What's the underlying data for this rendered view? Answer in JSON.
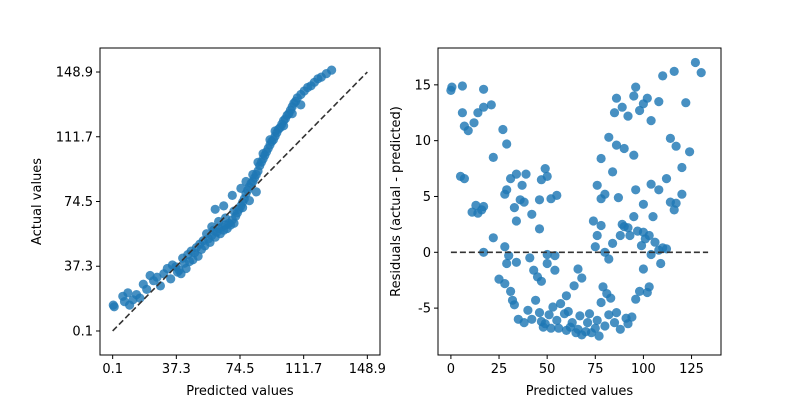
{
  "chart_data": [
    {
      "type": "scatter",
      "xlabel": "Predicted values",
      "ylabel": "Actual values",
      "xlim": [
        -7.3,
        156.3
      ],
      "ylim": [
        -13.7,
        162.7
      ],
      "xticks": [
        0.1,
        37.3,
        74.5,
        111.7,
        148.9
      ],
      "yticks": [
        0.1,
        37.3,
        74.5,
        111.7,
        148.9
      ],
      "reference_line": {
        "style": "dashed",
        "color": "#333333",
        "from": [
          0.1,
          0.1
        ],
        "to": [
          148.9,
          148.9
        ]
      },
      "marker_color": "#1f77b4",
      "points": [
        [
          0.5,
          15
        ],
        [
          1,
          14
        ],
        [
          6,
          20
        ],
        [
          7,
          17
        ],
        [
          9,
          22
        ],
        [
          10,
          15
        ],
        [
          12,
          18
        ],
        [
          14,
          21
        ],
        [
          16,
          19
        ],
        [
          18,
          27
        ],
        [
          20,
          24
        ],
        [
          22,
          32
        ],
        [
          24,
          29
        ],
        [
          26,
          31
        ],
        [
          28,
          26
        ],
        [
          30,
          33
        ],
        [
          32,
          36
        ],
        [
          34,
          30
        ],
        [
          35,
          38
        ],
        [
          37,
          37
        ],
        [
          38,
          34
        ],
        [
          39,
          35
        ],
        [
          40,
          33
        ],
        [
          41,
          42
        ],
        [
          42,
          39
        ],
        [
          43,
          36
        ],
        [
          44,
          44
        ],
        [
          45,
          40
        ],
        [
          46,
          46
        ],
        [
          47,
          41
        ],
        [
          48,
          45
        ],
        [
          49,
          48
        ],
        [
          50,
          43
        ],
        [
          51,
          50
        ],
        [
          52,
          47
        ],
        [
          53,
          52
        ],
        [
          54,
          49
        ],
        [
          55,
          56
        ],
        [
          56,
          53
        ],
        [
          57,
          51
        ],
        [
          58,
          55
        ],
        [
          59,
          58
        ],
        [
          60,
          54
        ],
        [
          61,
          57
        ],
        [
          62,
          59
        ],
        [
          63,
          56
        ],
        [
          64,
          60
        ],
        [
          65,
          58
        ],
        [
          66,
          61
        ],
        [
          67,
          59
        ],
        [
          68,
          62
        ],
        [
          69,
          61
        ],
        [
          70,
          64
        ],
        [
          71,
          62
        ],
        [
          72,
          66
        ],
        [
          73,
          68
        ],
        [
          74,
          70
        ],
        [
          75,
          72
        ],
        [
          76,
          74
        ],
        [
          77,
          76
        ],
        [
          78,
          79
        ],
        [
          79,
          81
        ],
        [
          80,
          83
        ],
        [
          81,
          85
        ],
        [
          82,
          86
        ],
        [
          83,
          88
        ],
        [
          84,
          90
        ],
        [
          85,
          92
        ],
        [
          86,
          95
        ],
        [
          87,
          97
        ],
        [
          88,
          99
        ],
        [
          89,
          101
        ],
        [
          90,
          103
        ],
        [
          91,
          105
        ],
        [
          92,
          107
        ],
        [
          93,
          109
        ],
        [
          94,
          110
        ],
        [
          95,
          112
        ],
        [
          96,
          114
        ],
        [
          97,
          116
        ],
        [
          98,
          117
        ],
        [
          99,
          119
        ],
        [
          100,
          121
        ],
        [
          101,
          122
        ],
        [
          102,
          124
        ],
        [
          103,
          125
        ],
        [
          104,
          127
        ],
        [
          105,
          129
        ],
        [
          106,
          131
        ],
        [
          107,
          132
        ],
        [
          108,
          134
        ],
        [
          110,
          136
        ],
        [
          112,
          138
        ],
        [
          114,
          140
        ],
        [
          116,
          141
        ],
        [
          118,
          143
        ],
        [
          120,
          145
        ],
        [
          122,
          146
        ],
        [
          125,
          148
        ],
        [
          128,
          150
        ],
        [
          60,
          70
        ],
        [
          65,
          72
        ],
        [
          70,
          78
        ],
        [
          75,
          82
        ],
        [
          78,
          86
        ],
        [
          82,
          90
        ],
        [
          85,
          97
        ],
        [
          88,
          102
        ],
        [
          92,
          110
        ],
        [
          95,
          115
        ],
        [
          100,
          118
        ],
        [
          105,
          125
        ],
        [
          110,
          130
        ],
        [
          58,
          60
        ],
        [
          62,
          63
        ],
        [
          66,
          65
        ],
        [
          71,
          69
        ],
        [
          76,
          71
        ],
        [
          80,
          75
        ],
        [
          84,
          80
        ]
      ]
    },
    {
      "type": "scatter",
      "xlabel": "Predicted values",
      "ylabel": "Residuals (actual - predicted)",
      "xlim": [
        -6.7,
        140.3
      ],
      "ylim": [
        -9.2,
        18.3
      ],
      "xticks": [
        0,
        25,
        50,
        75,
        100,
        125
      ],
      "yticks": [
        -5,
        0,
        5,
        10,
        15
      ],
      "reference_line": {
        "style": "dashed",
        "color": "#333333",
        "from": [
          0,
          0
        ],
        "to": [
          133.6,
          0
        ]
      },
      "marker_color": "#1f77b4",
      "points": [
        [
          0,
          14.5
        ],
        [
          0.5,
          14.8
        ],
        [
          6,
          14.9
        ],
        [
          6,
          12.5
        ],
        [
          7,
          11.3
        ],
        [
          9,
          10.9
        ],
        [
          12,
          11.6
        ],
        [
          14,
          12.5
        ],
        [
          17,
          14.6
        ],
        [
          17,
          13
        ],
        [
          21,
          13.2
        ],
        [
          22,
          8.5
        ],
        [
          27,
          11
        ],
        [
          29,
          9.7
        ],
        [
          5,
          6.8
        ],
        [
          7,
          6.6
        ],
        [
          11,
          3.6
        ],
        [
          13,
          4.2
        ],
        [
          14,
          3.5
        ],
        [
          16,
          3.8
        ],
        [
          17,
          4.1
        ],
        [
          17,
          0
        ],
        [
          22,
          1.3
        ],
        [
          28,
          5.2
        ],
        [
          29,
          5.6
        ],
        [
          31,
          6.6
        ],
        [
          34,
          7
        ],
        [
          37,
          6
        ],
        [
          39,
          7
        ],
        [
          33,
          4
        ],
        [
          36,
          4.7
        ],
        [
          38,
          4.5
        ],
        [
          34,
          2.8
        ],
        [
          42,
          3.4
        ],
        [
          46,
          4.7
        ],
        [
          47,
          6.5
        ],
        [
          49,
          7.5
        ],
        [
          50,
          6.8
        ],
        [
          52,
          4.8
        ],
        [
          55,
          5.1
        ],
        [
          46,
          2.1
        ],
        [
          28,
          0.5
        ],
        [
          29,
          -1
        ],
        [
          30,
          -0.3
        ],
        [
          34,
          -0.9
        ],
        [
          41,
          -0.5
        ],
        [
          50,
          -1
        ],
        [
          50,
          -0.2
        ],
        [
          54,
          -0.3
        ],
        [
          54,
          -1.6
        ],
        [
          25,
          -2.4
        ],
        [
          28,
          -2.8
        ],
        [
          31,
          -3.5
        ],
        [
          32,
          -4.3
        ],
        [
          33,
          -4.7
        ],
        [
          35,
          -6
        ],
        [
          38,
          -6.3
        ],
        [
          40,
          -5.2
        ],
        [
          42,
          -6
        ],
        [
          44,
          -4.3
        ],
        [
          46,
          -5.4
        ],
        [
          47,
          -6.2
        ],
        [
          48,
          -6.7
        ],
        [
          49,
          -6.4
        ],
        [
          51,
          -5.6
        ],
        [
          52,
          -6.8
        ],
        [
          53,
          -4.9
        ],
        [
          55,
          -6.1
        ],
        [
          56,
          -6.8
        ],
        [
          57,
          -4.6
        ],
        [
          59,
          -5.5
        ],
        [
          60,
          -7
        ],
        [
          61,
          -5.3
        ],
        [
          62,
          -6.7
        ],
        [
          63,
          -6.3
        ],
        [
          65,
          -7.2
        ],
        [
          66,
          -6.9
        ],
        [
          67,
          -5.7
        ],
        [
          68,
          -7.4
        ],
        [
          70,
          -7.1
        ],
        [
          71,
          -6.3
        ],
        [
          72,
          -5.5
        ],
        [
          73,
          -7.2
        ],
        [
          75,
          -6.8
        ],
        [
          76,
          -6.1
        ],
        [
          77,
          -7.5
        ],
        [
          78,
          -4.5
        ],
        [
          79,
          -3.1
        ],
        [
          80,
          -6.6
        ],
        [
          81,
          -3.7
        ],
        [
          82,
          -5.6
        ],
        [
          83,
          -4.1
        ],
        [
          85,
          -6.3
        ],
        [
          86,
          -5.4
        ],
        [
          88,
          -6.9
        ],
        [
          91,
          -5.9
        ],
        [
          92,
          -6.4
        ],
        [
          94,
          -5.8
        ],
        [
          96,
          -4.2
        ],
        [
          98,
          -3.5
        ],
        [
          100,
          -1.5
        ],
        [
          102,
          -3.6
        ],
        [
          103,
          -3.1
        ],
        [
          43,
          -1.6
        ],
        [
          45,
          -2.2
        ],
        [
          47,
          -2.6
        ],
        [
          60,
          -3.9
        ],
        [
          64,
          -3
        ],
        [
          66,
          -1.5
        ],
        [
          68,
          -2.3
        ],
        [
          75,
          0.5
        ],
        [
          76,
          1.5
        ],
        [
          78,
          2.4
        ],
        [
          80,
          0
        ],
        [
          82,
          -0.6
        ],
        [
          84,
          0.8
        ],
        [
          88,
          1.5
        ],
        [
          90,
          2.3
        ],
        [
          92,
          2.2
        ],
        [
          95,
          3.2
        ],
        [
          97,
          1.9
        ],
        [
          99,
          0.6
        ],
        [
          100,
          1.8
        ],
        [
          101,
          1.2
        ],
        [
          103,
          1.5
        ],
        [
          104,
          -0.2
        ],
        [
          106,
          0.9
        ],
        [
          108,
          0.2
        ],
        [
          109,
          -1
        ],
        [
          110,
          0.4
        ],
        [
          112,
          0.3
        ],
        [
          74,
          2.8
        ],
        [
          76,
          6
        ],
        [
          78,
          4.8
        ],
        [
          80,
          5.2
        ],
        [
          84,
          7.2
        ],
        [
          87,
          4.9
        ],
        [
          89,
          2.5
        ],
        [
          93,
          1.5
        ],
        [
          96,
          5.6
        ],
        [
          100,
          4.3
        ],
        [
          105,
          3.2
        ],
        [
          108,
          5.6
        ],
        [
          112,
          6.6
        ],
        [
          114,
          4.5
        ],
        [
          116,
          3.8
        ],
        [
          120,
          5.2
        ],
        [
          117,
          4.4
        ],
        [
          85,
          12.5
        ],
        [
          86,
          13.8
        ],
        [
          89,
          13
        ],
        [
          92,
          12.2
        ],
        [
          95,
          14
        ],
        [
          96,
          14.8
        ],
        [
          98,
          12.7
        ],
        [
          100,
          13.3
        ],
        [
          102,
          13.8
        ],
        [
          104,
          11.8
        ],
        [
          108,
          13.5
        ],
        [
          110,
          15.8
        ],
        [
          114,
          10.2
        ],
        [
          116,
          16.2
        ],
        [
          120,
          7.6
        ],
        [
          122,
          13.4
        ],
        [
          124,
          9
        ],
        [
          127,
          17
        ],
        [
          130,
          16.1
        ],
        [
          117,
          9.5
        ],
        [
          104,
          6.1
        ],
        [
          95,
          8.7
        ],
        [
          90,
          9.3
        ],
        [
          86,
          9.6
        ],
        [
          82,
          10.3
        ],
        [
          78,
          8.4
        ]
      ]
    }
  ]
}
